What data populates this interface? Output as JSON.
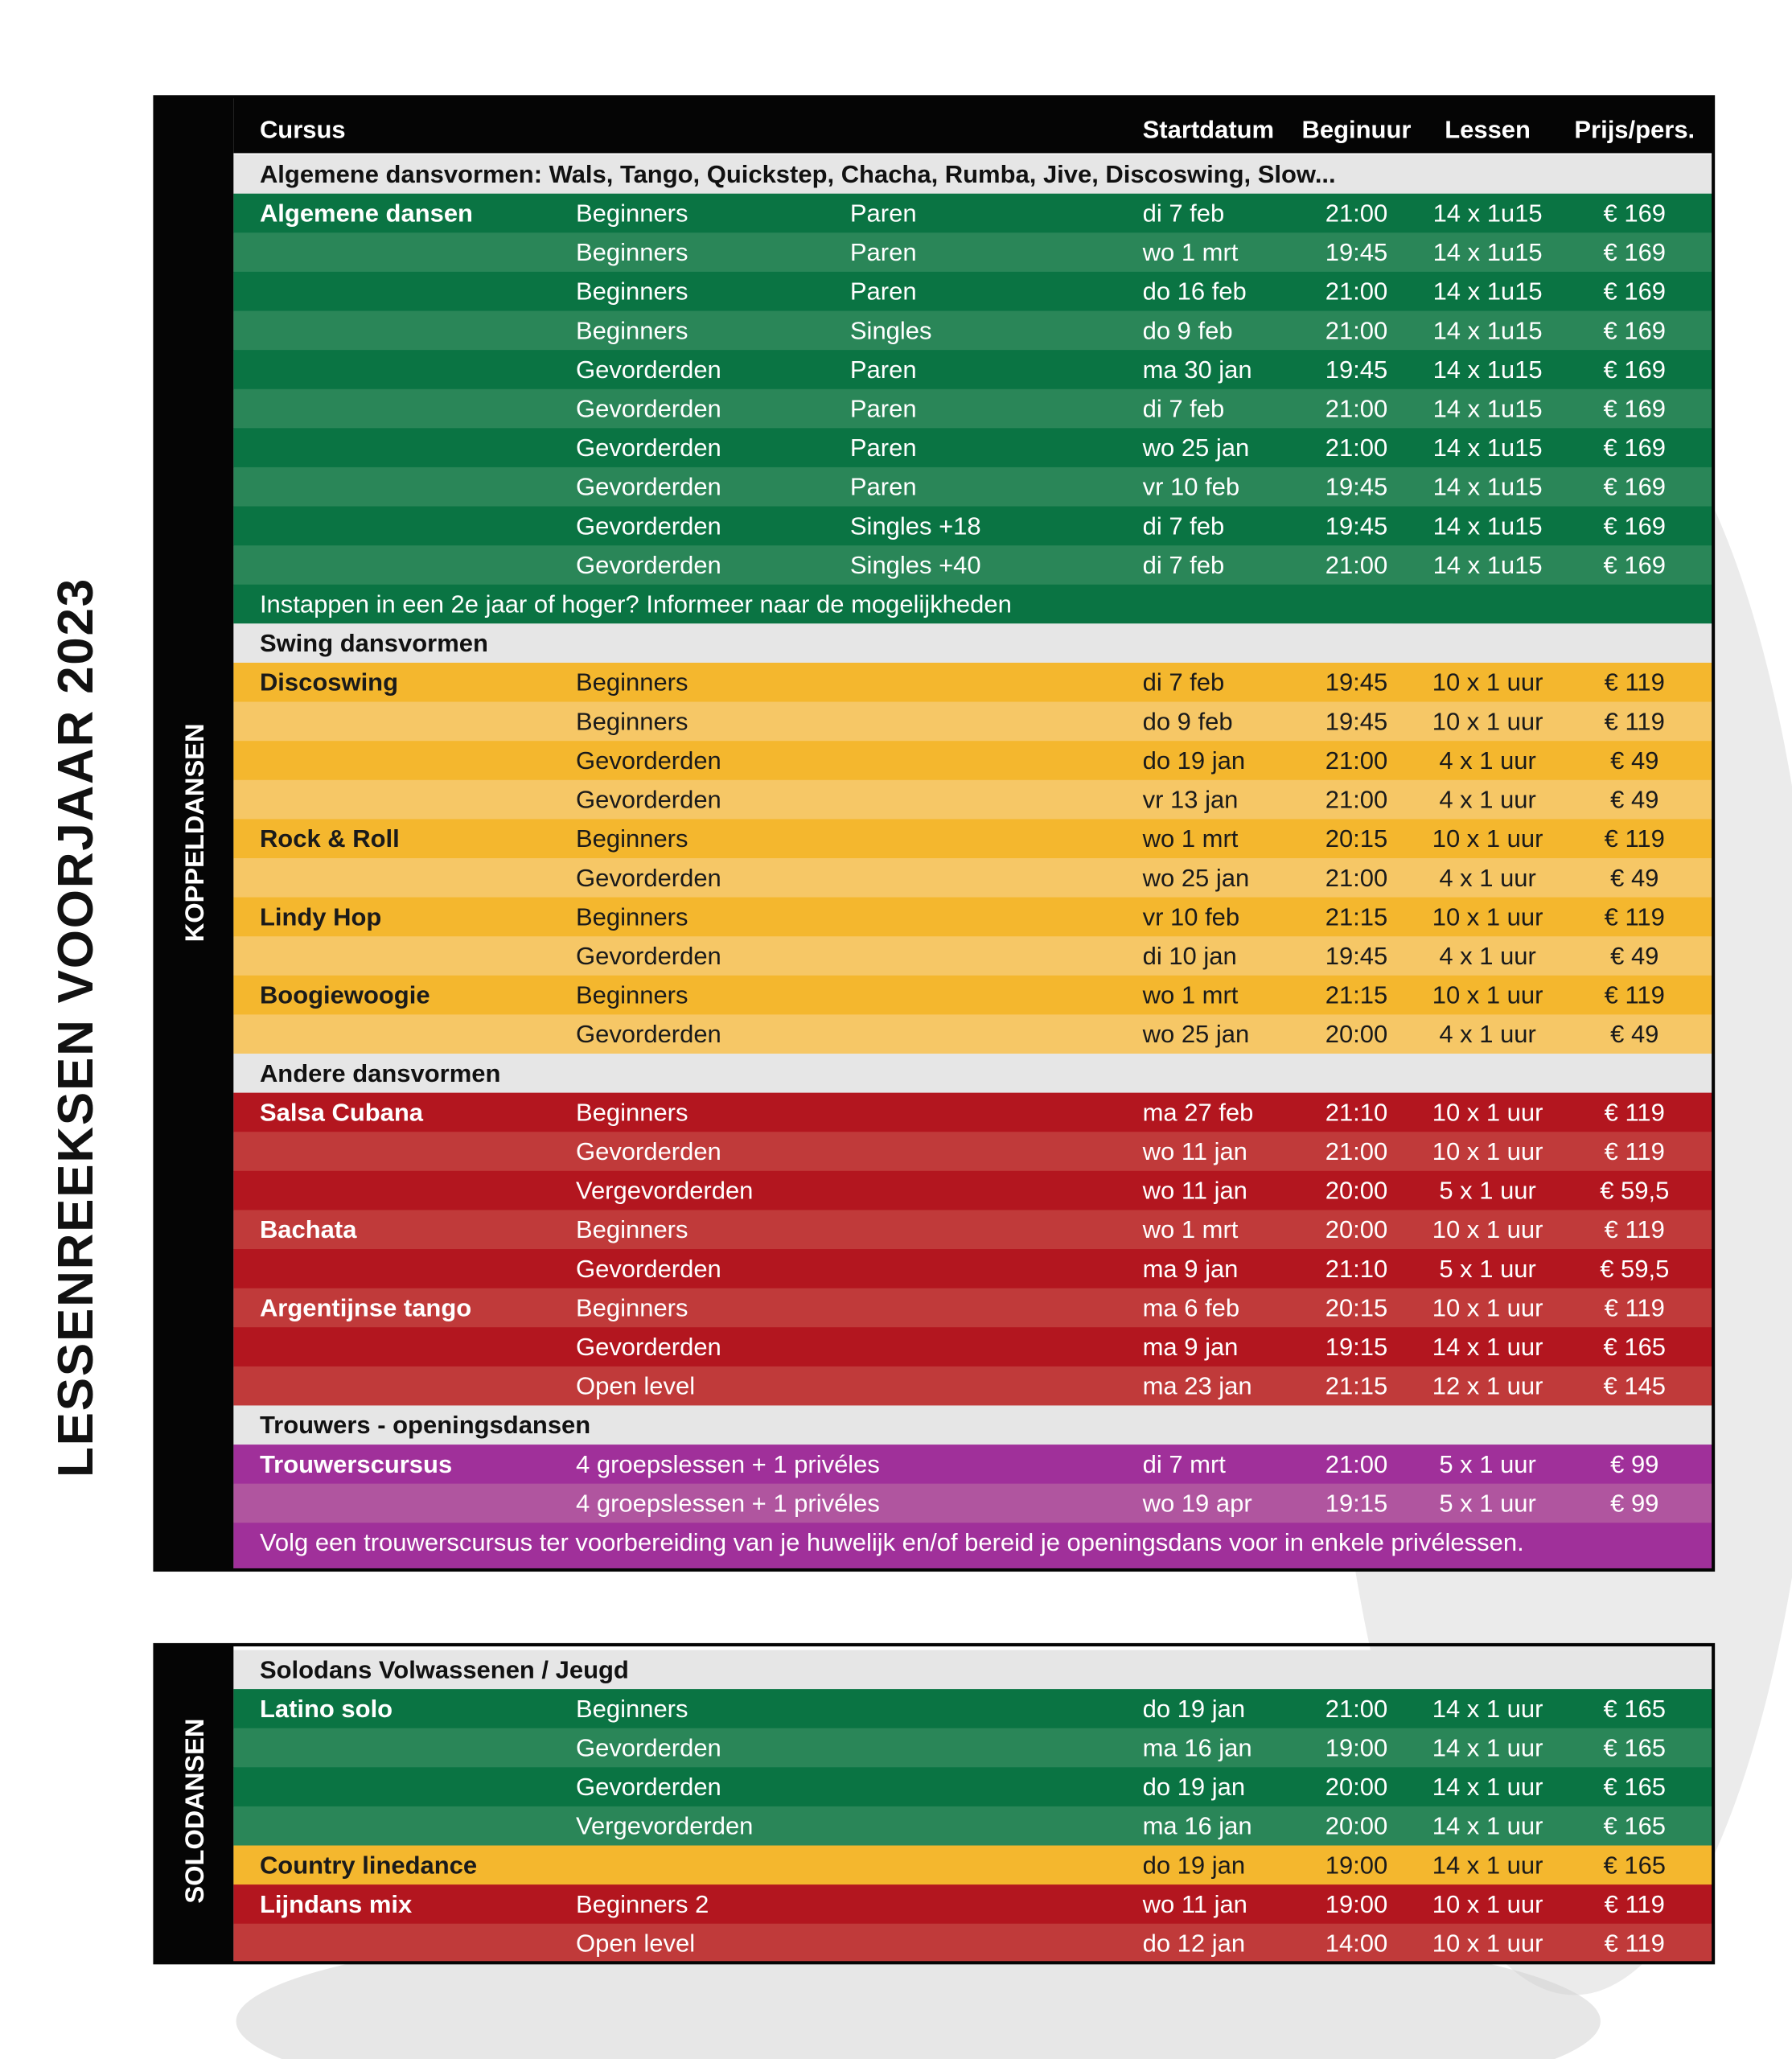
{
  "title": "LESSENREEKSEN VOORJAAR 2023",
  "header": [
    "Cursus",
    "Startdatum",
    "Beginuur",
    "Lessen",
    "Prijs/pers."
  ],
  "tables": [
    {
      "side_label": "KOPPELDANSEN",
      "has_header": true,
      "sections": [
        {
          "heading": "Algemene dansvormen: Wals, Tango, Quickstep, Chacha, Rumba, Jive, Discoswing, Slow...",
          "colors": [
            "#0a7443",
            "#2a8658"
          ],
          "text_color": "#ffffff",
          "rows": [
            {
              "name": "Algemene dansen",
              "level": "Beginners",
              "type": "Paren",
              "date": "di 7 feb",
              "time": "21:00",
              "lessons": "14 x 1u15",
              "price": "€ 169"
            },
            {
              "level": "Beginners",
              "type": "Paren",
              "date": "wo 1 mrt",
              "time": "19:45",
              "lessons": "14 x 1u15",
              "price": "€ 169"
            },
            {
              "level": "Beginners",
              "type": "Paren",
              "date": "do 16 feb",
              "time": "21:00",
              "lessons": "14 x 1u15",
              "price": "€ 169"
            },
            {
              "level": "Beginners",
              "type": "Singles",
              "date": "do 9 feb",
              "time": "21:00",
              "lessons": "14 x 1u15",
              "price": "€ 169"
            },
            {
              "level": "Gevorderden",
              "type": "Paren",
              "date": "ma 30 jan",
              "time": "19:45",
              "lessons": "14 x 1u15",
              "price": "€ 169"
            },
            {
              "level": "Gevorderden",
              "type": "Paren",
              "date": "di 7 feb",
              "time": "21:00",
              "lessons": "14 x 1u15",
              "price": "€ 169"
            },
            {
              "level": "Gevorderden",
              "type": "Paren",
              "date": "wo 25 jan",
              "time": "21:00",
              "lessons": "14 x 1u15",
              "price": "€ 169"
            },
            {
              "level": "Gevorderden",
              "type": "Paren",
              "date": "vr 10 feb",
              "time": "19:45",
              "lessons": "14 x 1u15",
              "price": "€ 169"
            },
            {
              "level": "Gevorderden",
              "type": "Singles +18",
              "date": "di 7 feb",
              "time": "19:45",
              "lessons": "14 x 1u15",
              "price": "€ 169"
            },
            {
              "level": "Gevorderden",
              "type": "Singles +40",
              "date": "di 7 feb",
              "time": "21:00",
              "lessons": "14 x 1u15",
              "price": "€ 169"
            }
          ],
          "note": "Instappen in een 2e jaar of hoger? Informeer naar de mogelijkheden"
        },
        {
          "heading": "Swing dansvormen",
          "colors": [
            "#f4b72e",
            "#f6c766"
          ],
          "text_color": "#1a1a1a",
          "rows": [
            {
              "name": "Discoswing",
              "level": "Beginners",
              "date": "di 7 feb",
              "time": "19:45",
              "lessons": "10 x 1 uur",
              "price": "€ 119"
            },
            {
              "level": "Beginners",
              "date": "do 9 feb",
              "time": "19:45",
              "lessons": "10 x 1 uur",
              "price": "€ 119"
            },
            {
              "level": "Gevorderden",
              "date": "do 19 jan",
              "time": "21:00",
              "lessons": "4 x 1 uur",
              "price": "€ 49"
            },
            {
              "level": "Gevorderden",
              "date": "vr 13 jan",
              "time": "21:00",
              "lessons": "4 x 1 uur",
              "price": "€ 49"
            },
            {
              "name": "Rock & Roll",
              "level": "Beginners",
              "date": "wo 1 mrt",
              "time": "20:15",
              "lessons": "10 x 1 uur",
              "price": "€ 119"
            },
            {
              "level": "Gevorderden",
              "date": "wo 25 jan",
              "time": "21:00",
              "lessons": "4 x 1 uur",
              "price": "€ 49"
            },
            {
              "name": "Lindy Hop",
              "level": "Beginners",
              "date": "vr 10 feb",
              "time": "21:15",
              "lessons": "10 x 1 uur",
              "price": "€ 119"
            },
            {
              "level": "Gevorderden",
              "date": "di 10 jan",
              "time": "19:45",
              "lessons": "4 x 1 uur",
              "price": "€ 49"
            },
            {
              "name": "Boogiewoogie",
              "level": "Beginners",
              "date": "wo 1 mrt",
              "time": "21:15",
              "lessons": "10 x 1 uur",
              "price": "€ 119"
            },
            {
              "level": "Gevorderden",
              "date": "wo 25 jan",
              "time": "20:00",
              "lessons": "4 x 1 uur",
              "price": "€ 49"
            }
          ]
        },
        {
          "heading": "Andere dansvormen",
          "colors": [
            "#b3161f",
            "#c03a3a"
          ],
          "text_color": "#ffffff",
          "rows": [
            {
              "name": "Salsa Cubana",
              "level": "Beginners",
              "date": "ma 27 feb",
              "time": "21:10",
              "lessons": "10 x 1 uur",
              "price": "€ 119"
            },
            {
              "level": "Gevorderden",
              "date": "wo 11 jan",
              "time": "21:00",
              "lessons": "10 x 1 uur",
              "price": "€ 119"
            },
            {
              "level": "Vergevorderden",
              "date": "wo 11 jan",
              "time": "20:00",
              "lessons": "5 x 1 uur",
              "price": "€ 59,5"
            },
            {
              "name": "Bachata",
              "level": "Beginners",
              "date": "wo 1 mrt",
              "time": "20:00",
              "lessons": "10 x 1 uur",
              "price": "€ 119"
            },
            {
              "level": "Gevorderden",
              "date": "ma 9 jan",
              "time": "21:10",
              "lessons": "5 x 1 uur",
              "price": "€ 59,5"
            },
            {
              "name": "Argentijnse tango",
              "level": "Beginners",
              "date": "ma 6 feb",
              "time": "20:15",
              "lessons": "10 x 1 uur",
              "price": "€ 119"
            },
            {
              "level": "Gevorderden",
              "date": "ma 9 jan",
              "time": "19:15",
              "lessons": "14 x 1 uur",
              "price": "€ 165"
            },
            {
              "level": "Open level",
              "date": "ma 23 jan",
              "time": "21:15",
              "lessons": "12 x 1 uur",
              "price": "€ 145"
            }
          ]
        },
        {
          "heading": "Trouwers - openingsdansen",
          "colors": [
            "#a0309a",
            "#b0559f"
          ],
          "text_color": "#ffffff",
          "rows": [
            {
              "name": "Trouwerscursus",
              "level": "4 groepslessen + 1 privéles",
              "date": "di 7 mrt",
              "time": "21:00",
              "lessons": "5 x 1 uur",
              "price": "€ 99"
            },
            {
              "level": "4 groepslessen + 1 privéles",
              "date": "wo 19 apr",
              "time": "19:15",
              "lessons": "5 x 1 uur",
              "price": "€ 99"
            }
          ],
          "note": "Volg een trouwerscursus ter voorbereiding van je huwelijk en/of bereid je openingsdans voor in enkele privélessen."
        }
      ]
    },
    {
      "side_label": "SOLODANSEN",
      "has_header": false,
      "sections": [
        {
          "heading": "Solodans Volwassenen / Jeugd",
          "colors": [
            "#0a7443",
            "#2a8658"
          ],
          "text_color": "#ffffff",
          "rows": [
            {
              "name": "Latino solo",
              "level": "Beginners",
              "date": "do 19 jan",
              "time": "21:00",
              "lessons": "14 x 1 uur",
              "price": "€ 165"
            },
            {
              "level": "Gevorderden",
              "date": "ma 16 jan",
              "time": "19:00",
              "lessons": "14 x 1 uur",
              "price": "€ 165"
            },
            {
              "level": "Gevorderden",
              "date": "do 19 jan",
              "time": "20:00",
              "lessons": "14 x 1 uur",
              "price": "€ 165"
            },
            {
              "level": "Vergevorderden",
              "date": "ma 16 jan",
              "time": "20:00",
              "lessons": "14 x 1 uur",
              "price": "€ 165"
            }
          ]
        },
        {
          "colors": [
            "#f4b72e",
            "#f6c766"
          ],
          "text_color": "#1a1a1a",
          "rows": [
            {
              "name": "Country linedance",
              "date": "do 19 jan",
              "time": "19:00",
              "lessons": "14 x 1 uur",
              "price": "€ 165"
            }
          ]
        },
        {
          "colors": [
            "#b3161f",
            "#c03a3a"
          ],
          "text_color": "#ffffff",
          "rows": [
            {
              "name": "Lijndans mix",
              "level": "Beginners 2",
              "date": "wo 11 jan",
              "time": "19:00",
              "lessons": "10 x 1 uur",
              "price": "€ 119"
            },
            {
              "level": "Open level",
              "date": "do 12 jan",
              "time": "14:00",
              "lessons": "10 x 1 uur",
              "price": "€ 119"
            }
          ]
        }
      ]
    }
  ]
}
